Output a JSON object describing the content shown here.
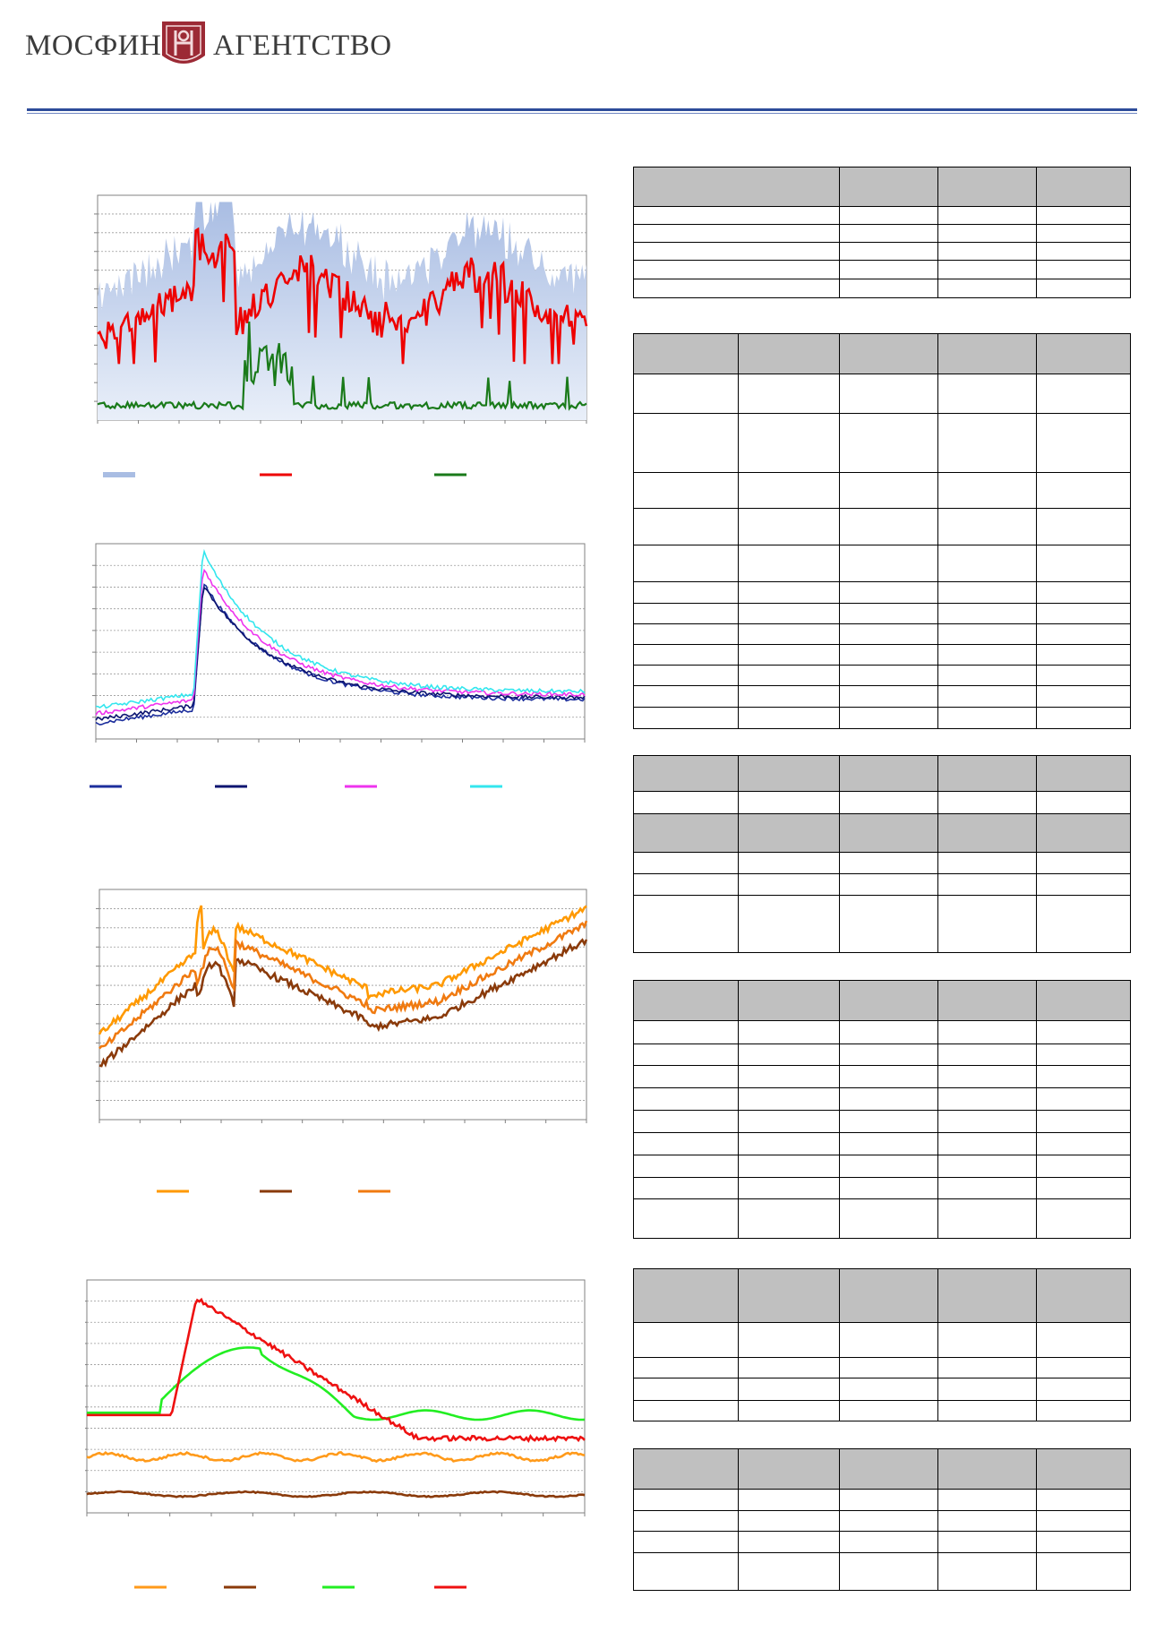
{
  "brand": {
    "name_left": "МОСФИН",
    "name_right": "АГЕНТСТВО",
    "logo_color": "#9c2a35",
    "rule_color": "#2d4c9a"
  },
  "charts": [
    {
      "id": "chart1",
      "type": "area+line",
      "grid": true,
      "series": [
        {
          "role": "area",
          "color": "#a9bde3",
          "gradient_to": "#e9eff9"
        },
        {
          "role": "line",
          "color": "#ee0000"
        },
        {
          "role": "line",
          "color": "#1a7a1a"
        }
      ]
    },
    {
      "id": "chart2",
      "type": "line",
      "grid": true,
      "series": [
        {
          "role": "line",
          "color": "#1c2e9c"
        },
        {
          "role": "line",
          "color": "#0c1470"
        },
        {
          "role": "line",
          "color": "#ee33ee"
        },
        {
          "role": "line",
          "color": "#33e6ee"
        }
      ]
    },
    {
      "id": "chart3",
      "type": "line",
      "grid": true,
      "series": [
        {
          "role": "line",
          "color": "#ff9900"
        },
        {
          "role": "line",
          "color": "#8a3a0a"
        },
        {
          "role": "line",
          "color": "#f07a10"
        }
      ]
    },
    {
      "id": "chart4",
      "type": "line",
      "grid": true,
      "series": [
        {
          "role": "line",
          "color": "#ff9a1a"
        },
        {
          "role": "line",
          "color": "#8a3a0a"
        },
        {
          "role": "line",
          "color": "#22ee22"
        },
        {
          "role": "line",
          "color": "#ee1111"
        }
      ]
    }
  ]
}
